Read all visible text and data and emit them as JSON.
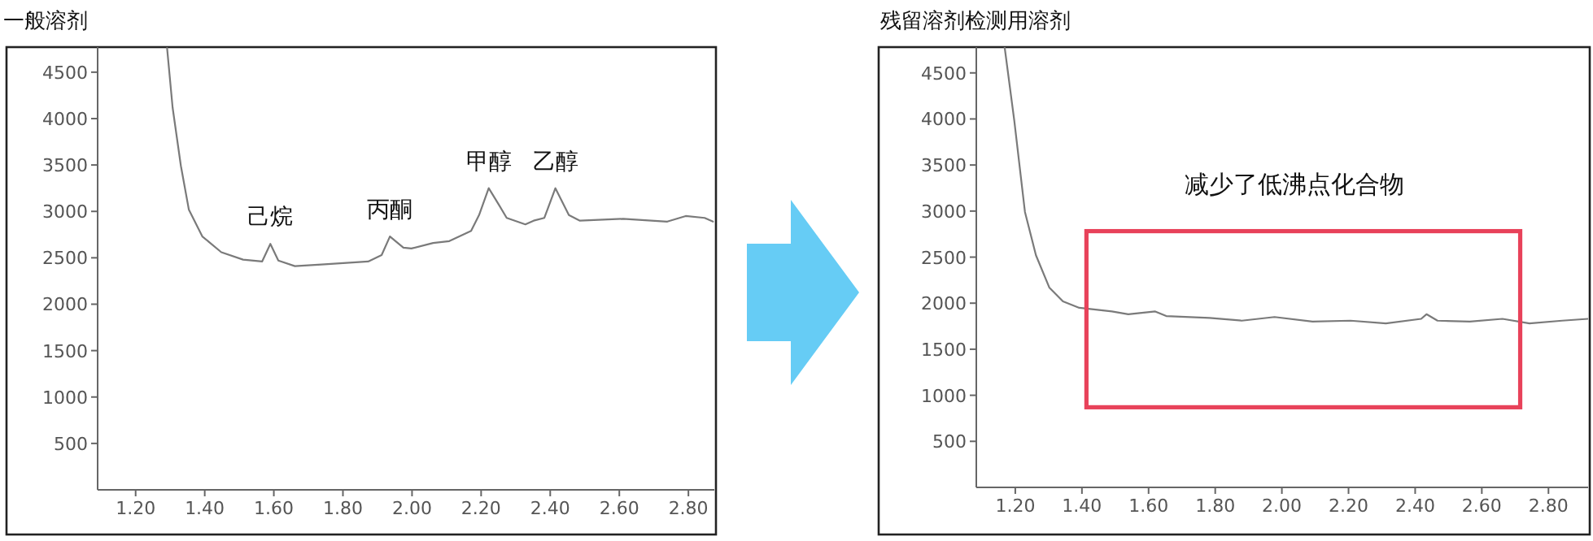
{
  "chart_data": [
    {
      "type": "line",
      "title": "一般溶剂",
      "color": "#7a7a7a",
      "x": [
        1.291,
        1.307,
        1.331,
        1.354,
        1.393,
        1.448,
        1.511,
        1.566,
        1.59,
        1.613,
        1.661,
        1.747,
        1.873,
        1.912,
        1.936,
        1.975,
        1.998,
        2.061,
        2.108,
        2.171,
        2.194,
        2.222,
        2.25,
        2.274,
        2.328,
        2.352,
        2.383,
        2.415,
        2.454,
        2.486,
        2.611,
        2.739,
        2.792,
        2.847,
        2.871
      ],
      "values": [
        4760,
        4120,
        3490,
        3020,
        2730,
        2560,
        2480,
        2460,
        2650,
        2470,
        2410,
        2430,
        2460,
        2530,
        2730,
        2610,
        2600,
        2660,
        2680,
        2790,
        2960,
        3250,
        3080,
        2930,
        2860,
        2900,
        2930,
        3250,
        2960,
        2900,
        2920,
        2890,
        2950,
        2930,
        2890
      ],
      "xlim": [
        1.09,
        2.875
      ],
      "ylim": [
        0,
        4770
      ],
      "xticks": [
        {
          "value": 1.2,
          "label": "1.20"
        },
        {
          "value": 1.4,
          "label": "1.40"
        },
        {
          "value": 1.6,
          "label": "1.60"
        },
        {
          "value": 1.8,
          "label": "1.80"
        },
        {
          "value": 2.0,
          "label": "2.00"
        },
        {
          "value": 2.2,
          "label": "2.20"
        },
        {
          "value": 2.4,
          "label": "2.40"
        },
        {
          "value": 2.6,
          "label": "2.60"
        },
        {
          "value": 2.8,
          "label": "2.80"
        }
      ],
      "yticks": [
        500,
        1000,
        1500,
        2000,
        2500,
        3000,
        3500,
        4000,
        4500
      ],
      "annotations": [
        {
          "text": "己烷",
          "x": 1.59,
          "y": 2650
        },
        {
          "text": "丙酮",
          "x": 1.936,
          "y": 2730
        },
        {
          "text": "甲醇",
          "x": 2.222,
          "y": 3250
        },
        {
          "text": "乙醇",
          "x": 2.415,
          "y": 3250
        }
      ]
    },
    {
      "type": "line",
      "title": "残留溶剂检测用溶剂",
      "color": "#7a7a7a",
      "x": [
        1.168,
        1.197,
        1.229,
        1.262,
        1.302,
        1.343,
        1.392,
        1.441,
        1.49,
        1.539,
        1.62,
        1.653,
        1.783,
        1.88,
        1.978,
        2.092,
        2.206,
        2.312,
        2.418,
        2.434,
        2.467,
        2.564,
        2.662,
        2.743,
        2.841,
        2.919
      ],
      "values": [
        4780,
        3980,
        2990,
        2520,
        2170,
        2020,
        1950,
        1930,
        1910,
        1880,
        1910,
        1860,
        1840,
        1810,
        1850,
        1800,
        1810,
        1780,
        1830,
        1880,
        1810,
        1800,
        1830,
        1780,
        1810,
        1830
      ],
      "xlim": [
        1.083,
        2.919
      ],
      "ylim": [
        0,
        4780
      ],
      "xticks": [
        {
          "value": 1.2,
          "label": "1.20"
        },
        {
          "value": 1.4,
          "label": "1.40"
        },
        {
          "value": 1.6,
          "label": "1.60"
        },
        {
          "value": 1.8,
          "label": "1.80"
        },
        {
          "value": 2.0,
          "label": "2.00"
        },
        {
          "value": 2.2,
          "label": "2.20"
        },
        {
          "value": 2.4,
          "label": "2.40"
        },
        {
          "value": 2.6,
          "label": "2.60"
        },
        {
          "value": 2.8,
          "label": "2.80"
        }
      ],
      "yticks": [
        500,
        1000,
        1500,
        2000,
        2500,
        3000,
        3500,
        4000,
        4500
      ],
      "annotations": [
        "减少了低沸点化合物"
      ]
    }
  ]
}
